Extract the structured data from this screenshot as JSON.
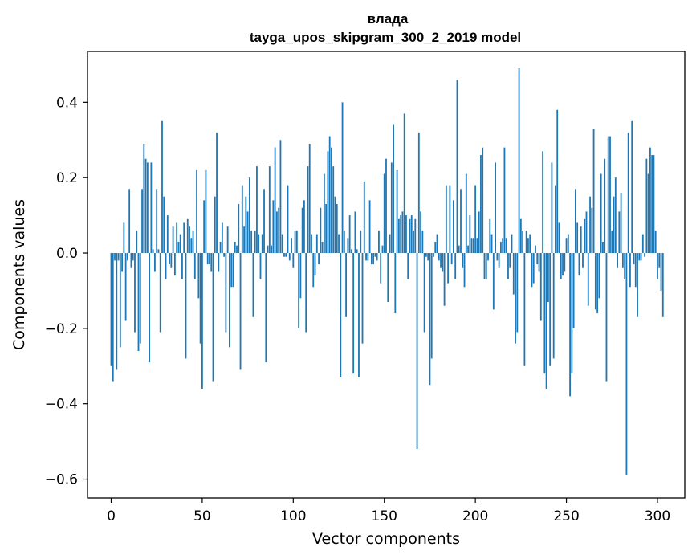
{
  "chart_data": {
    "type": "bar",
    "title": "влада",
    "subtitle": "tayga_upos_skipgram_300_2_2019 model",
    "xlabel": "Vector components",
    "ylabel": "Components values",
    "xlim": [
      -13,
      315
    ],
    "ylim": [
      -0.65,
      0.535
    ],
    "xticks": [
      0,
      50,
      100,
      150,
      200,
      250,
      300
    ],
    "xtick_labels": [
      "0",
      "50",
      "100",
      "150",
      "200",
      "250",
      "300"
    ],
    "yticks": [
      -0.6,
      -0.4,
      -0.2,
      0.0,
      0.2,
      0.4
    ],
    "ytick_labels": [
      "−0.6",
      "−0.4",
      "−0.2",
      "0.0",
      "0.2",
      "0.4"
    ],
    "bar_color": "#1f77b4",
    "grid": false,
    "values": [
      -0.3,
      -0.34,
      -0.02,
      -0.31,
      -0.02,
      -0.25,
      -0.05,
      0.08,
      -0.18,
      -0.02,
      0.17,
      -0.04,
      -0.02,
      -0.21,
      0.06,
      -0.26,
      -0.24,
      0.17,
      0.29,
      0.25,
      0.24,
      -0.29,
      0.24,
      0.01,
      -0.05,
      0.17,
      0.01,
      -0.21,
      0.35,
      0.15,
      -0.07,
      0.1,
      -0.03,
      -0.04,
      0.07,
      -0.06,
      0.08,
      0.03,
      0.05,
      -0.07,
      0.08,
      -0.28,
      0.09,
      0.07,
      0.04,
      0.06,
      -0.07,
      0.22,
      -0.12,
      -0.24,
      -0.36,
      0.14,
      0.22,
      -0.03,
      -0.03,
      -0.05,
      -0.34,
      0.15,
      0.32,
      -0.05,
      0.03,
      0.08,
      -0.01,
      -0.21,
      0.07,
      -0.25,
      -0.09,
      -0.09,
      0.03,
      0.02,
      0.13,
      -0.31,
      0.18,
      0.07,
      0.15,
      0.11,
      0.2,
      0.06,
      -0.17,
      0.06,
      0.23,
      0.05,
      -0.07,
      0.05,
      0.17,
      -0.29,
      0.02,
      0.23,
      0.02,
      0.14,
      0.28,
      0.11,
      0.12,
      0.3,
      0.05,
      -0.01,
      -0.01,
      0.18,
      -0.02,
      0.04,
      -0.04,
      0.06,
      0.06,
      -0.2,
      -0.12,
      0.12,
      0.14,
      -0.21,
      0.23,
      0.29,
      0.05,
      -0.09,
      -0.06,
      0.05,
      -0.03,
      0.12,
      0.03,
      0.21,
      0.13,
      0.27,
      0.31,
      0.28,
      0.23,
      0.15,
      0.13,
      0.05,
      -0.33,
      0.4,
      0.06,
      -0.17,
      0.04,
      0.1,
      0.01,
      -0.32,
      0.11,
      0.01,
      -0.33,
      0.06,
      -0.24,
      0.19,
      -0.02,
      -0.02,
      0.14,
      -0.03,
      -0.03,
      -0.01,
      -0.02,
      0.06,
      -0.08,
      0.02,
      0.21,
      0.25,
      -0.13,
      0.05,
      0.24,
      0.34,
      -0.16,
      0.22,
      0.09,
      0.1,
      0.11,
      0.37,
      0.1,
      -0.07,
      0.09,
      0.1,
      0.06,
      0.09,
      -0.52,
      0.32,
      0.11,
      0.06,
      -0.21,
      -0.01,
      -0.02,
      -0.35,
      -0.28,
      -0.01,
      0.03,
      0.05,
      -0.02,
      -0.04,
      -0.05,
      -0.14,
      0.18,
      -0.08,
      0.18,
      -0.03,
      0.14,
      -0.07,
      0.46,
      0.02,
      0.17,
      -0.04,
      -0.09,
      0.21,
      0.02,
      0.1,
      0.04,
      0.04,
      0.18,
      0.04,
      0.11,
      0.26,
      0.28,
      -0.07,
      -0.07,
      -0.02,
      0.09,
      0.05,
      -0.15,
      0.24,
      -0.02,
      -0.04,
      0.03,
      0.04,
      0.28,
      0.04,
      -0.07,
      -0.04,
      0.05,
      -0.11,
      -0.24,
      -0.21,
      0.49,
      0.09,
      0.06,
      -0.3,
      0.06,
      0.04,
      0.05,
      -0.09,
      -0.08,
      0.02,
      -0.03,
      -0.05,
      -0.18,
      0.27,
      -0.32,
      -0.36,
      -0.13,
      -0.3,
      0.24,
      -0.28,
      0.18,
      0.38,
      0.08,
      -0.07,
      -0.06,
      -0.05,
      0.04,
      0.05,
      -0.38,
      -0.32,
      -0.2,
      0.17,
      0.08,
      -0.06,
      0.07,
      -0.04,
      0.09,
      0.11,
      -0.14,
      0.15,
      0.12,
      0.33,
      -0.15,
      -0.16,
      -0.12,
      0.21,
      0.03,
      0.25,
      -0.34,
      0.31,
      0.31,
      0.06,
      0.15,
      0.2,
      -0.04,
      0.11,
      0.16,
      -0.04,
      -0.07,
      -0.59,
      0.32,
      -0.09,
      0.35,
      -0.03,
      -0.09,
      -0.17,
      -0.02,
      -0.02,
      0.05,
      -0.01,
      0.25,
      0.21,
      0.28,
      0.26,
      0.26,
      0.06,
      -0.07,
      -0.04,
      -0.1,
      -0.17
    ]
  }
}
